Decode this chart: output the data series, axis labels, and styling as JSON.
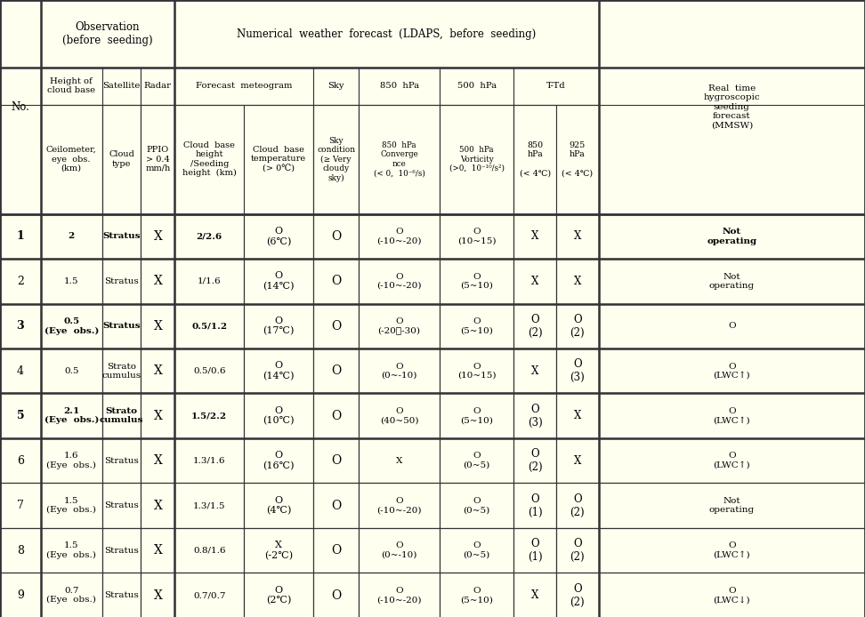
{
  "bg_color": "#FFFFF0",
  "border_color": "#333333",
  "figsize": [
    9.72,
    6.94
  ],
  "dpi": 100,
  "rows": [
    {
      "no": "1",
      "bold": true,
      "height": "2",
      "height_sub": "",
      "cloud_type": "Stratus",
      "cloud_bold": true,
      "radar": "X",
      "cloud_base_height": "2/2.6",
      "cbh_bold": true,
      "cloud_base_temp": "O\n(6℃)",
      "sky": "O",
      "convergence": "O\n(-10~-20)",
      "vorticity": "O\n(10~15)",
      "td850": "X",
      "td925": "X",
      "mmsw": "Not\noperating",
      "mmsw_bold": true
    },
    {
      "no": "2",
      "bold": false,
      "height": "1.5",
      "height_sub": "",
      "cloud_type": "Stratus",
      "cloud_bold": false,
      "radar": "X",
      "cloud_base_height": "1/1.6",
      "cbh_bold": false,
      "cloud_base_temp": "O\n(14℃)",
      "sky": "O",
      "convergence": "O\n(-10~-20)",
      "vorticity": "O\n(5~10)",
      "td850": "X",
      "td925": "X",
      "mmsw": "Not\noperating",
      "mmsw_bold": false
    },
    {
      "no": "3",
      "bold": true,
      "height": "0.5",
      "height_sub": "(Eye  obs.)",
      "cloud_type": "Stratus",
      "cloud_bold": true,
      "radar": "X",
      "cloud_base_height": "0.5/1.2",
      "cbh_bold": true,
      "cloud_base_temp": "O\n(17℃)",
      "sky": "O",
      "convergence": "O\n(-20～-30)",
      "vorticity": "O\n(5~10)",
      "td850": "O\n(2)",
      "td925": "O\n(2)",
      "mmsw": "O",
      "mmsw_bold": false
    },
    {
      "no": "4",
      "bold": false,
      "height": "0.5",
      "height_sub": "",
      "cloud_type": "Strato\ncumulus",
      "cloud_bold": false,
      "radar": "X",
      "cloud_base_height": "0.5/0.6",
      "cbh_bold": false,
      "cloud_base_temp": "O\n(14℃)",
      "sky": "O",
      "convergence": "O\n(0~-10)",
      "vorticity": "O\n(10~15)",
      "td850": "X",
      "td925": "O\n(3)",
      "mmsw": "O\n(LWC↑)",
      "mmsw_bold": false
    },
    {
      "no": "5",
      "bold": true,
      "height": "2.1",
      "height_sub": "(Eye  obs.)",
      "cloud_type": "Strato\ncumulus",
      "cloud_bold": true,
      "radar": "X",
      "cloud_base_height": "1.5/2.2",
      "cbh_bold": true,
      "cloud_base_temp": "O\n(10℃)",
      "sky": "O",
      "convergence": "O\n(40~50)",
      "vorticity": "O\n(5~10)",
      "td850": "O\n(3)",
      "td925": "X",
      "mmsw": "O\n(LWC↑)",
      "mmsw_bold": false
    },
    {
      "no": "6",
      "bold": false,
      "height": "1.6",
      "height_sub": "(Eye  obs.)",
      "cloud_type": "Stratus",
      "cloud_bold": false,
      "radar": "X",
      "cloud_base_height": "1.3/1.6",
      "cbh_bold": false,
      "cloud_base_temp": "O\n(16℃)",
      "sky": "O",
      "convergence": "X",
      "vorticity": "O\n(0~5)",
      "td850": "O\n(2)",
      "td925": "X",
      "mmsw": "O\n(LWC↑)",
      "mmsw_bold": false
    },
    {
      "no": "7",
      "bold": false,
      "height": "1.5",
      "height_sub": "(Eye  obs.)",
      "cloud_type": "Stratus",
      "cloud_bold": false,
      "radar": "X",
      "cloud_base_height": "1.3/1.5",
      "cbh_bold": false,
      "cloud_base_temp": "O\n(4℃)",
      "sky": "O",
      "convergence": "O\n(-10~-20)",
      "vorticity": "O\n(0~5)",
      "td850": "O\n(1)",
      "td925": "O\n(2)",
      "mmsw": "Not\noperating",
      "mmsw_bold": false
    },
    {
      "no": "8",
      "bold": false,
      "height": "1.5",
      "height_sub": "(Eye  obs.)",
      "cloud_type": "Stratus",
      "cloud_bold": false,
      "radar": "X",
      "cloud_base_height": "0.8/1.6",
      "cbh_bold": false,
      "cloud_base_temp": "X\n(-2℃)",
      "sky": "O",
      "convergence": "O\n(0~-10)",
      "vorticity": "O\n(0~5)",
      "td850": "O\n(1)",
      "td925": "O\n(2)",
      "mmsw": "O\n(LWC↑)",
      "mmsw_bold": false
    },
    {
      "no": "9",
      "bold": false,
      "height": "0.7",
      "height_sub": "(Eye  obs.)",
      "cloud_type": "Stratus",
      "cloud_bold": false,
      "radar": "X",
      "cloud_base_height": "0.7/0.7",
      "cbh_bold": false,
      "cloud_base_temp": "O\n(2℃)",
      "sky": "O",
      "convergence": "O\n(-10~-20)",
      "vorticity": "O\n(5~10)",
      "td850": "X",
      "td925": "O\n(2)",
      "mmsw": "O\n(LWC↓)",
      "mmsw_bold": false
    }
  ]
}
